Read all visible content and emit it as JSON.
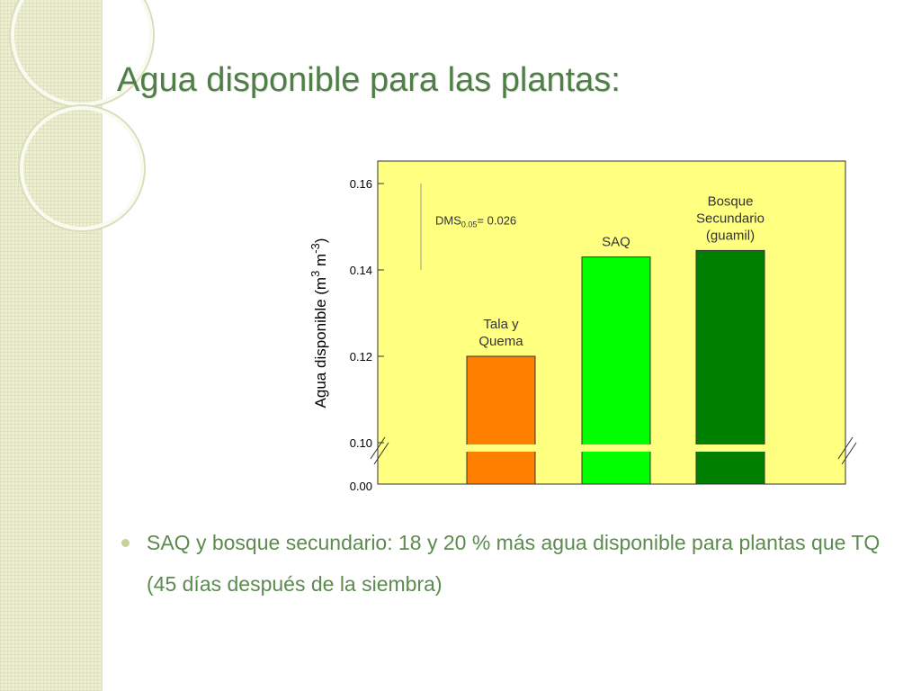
{
  "slide": {
    "title": "Agua disponible para las plantas:",
    "bullet": "SAQ y bosque secundario: 18 y 20 % más agua disponible para plantas que TQ (45 días después de la siembra)"
  },
  "colors": {
    "plot_bg": "#ffff80",
    "title": "#4e7f45",
    "bullet_text": "#5c8a4f"
  },
  "chart_data": {
    "type": "bar",
    "title": "",
    "ylabel_main": "Agua disponible (m",
    "ylabel_sup1": "3",
    "ylabel_mid": " m",
    "ylabel_sup2": "-3",
    "ylabel_end": ")",
    "categories": [
      "Tala y Quema",
      "SAQ",
      "Bosque Secundario (guamil)"
    ],
    "category_label_lines": [
      [
        "Tala y",
        "Quema"
      ],
      [
        "SAQ"
      ],
      [
        "Bosque",
        "Secundario",
        "(guamil)"
      ]
    ],
    "values": [
      0.12,
      0.143,
      0.1445
    ],
    "bar_colors": [
      "#ff8000",
      "#00ff00",
      "#008000"
    ],
    "ylim": [
      0.1,
      0.165
    ],
    "yticks": [
      "0.16",
      "0.14",
      "0.12",
      "0.10"
    ],
    "ytick_values": [
      0.16,
      0.14,
      0.12,
      0.1
    ],
    "axis_break_tick": "0.00",
    "annotation": {
      "prefix": "DMS",
      "subscript": "0.05",
      "suffix": "= 0.026",
      "range": [
        0.14,
        0.16
      ]
    },
    "grid": false,
    "legend": "none"
  }
}
